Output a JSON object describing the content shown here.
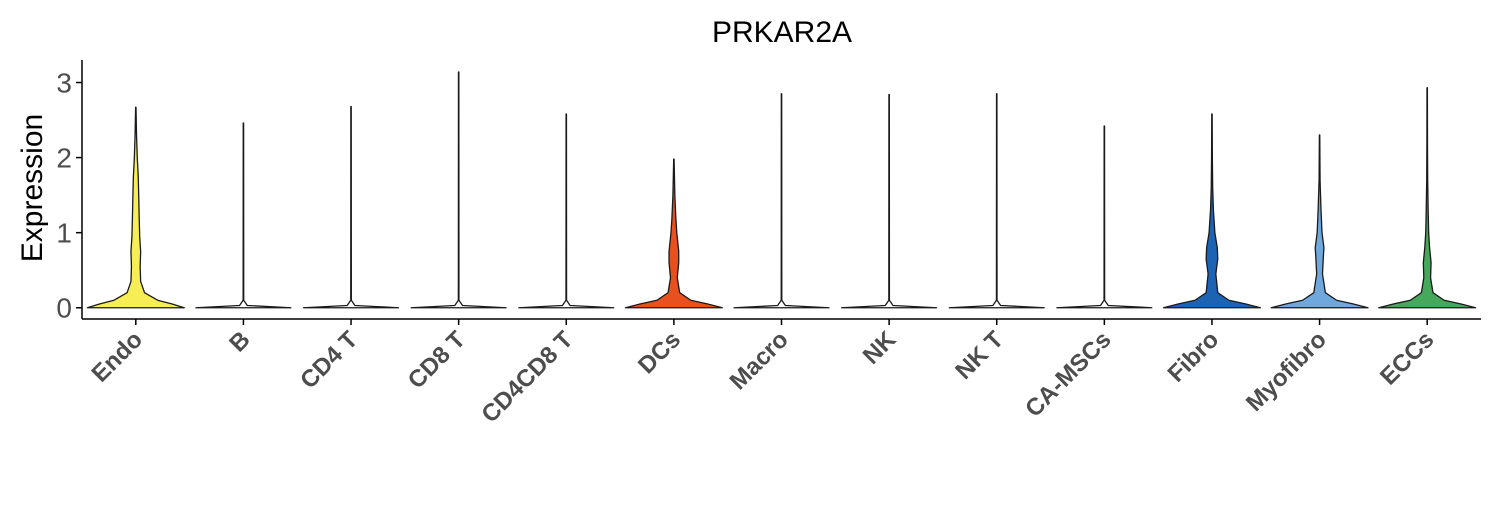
{
  "chart_data": {
    "type": "violin",
    "title": "PRKAR2A",
    "xlabel": "",
    "ylabel": "Expression",
    "ylim": [
      -0.15,
      3.3
    ],
    "yticks": [
      0,
      1,
      2,
      3
    ],
    "grid": false,
    "legend": "none",
    "categories": [
      "Endo",
      "B",
      "CD4 T",
      "CD8 T",
      "CD4CD8 T",
      "DCs",
      "Macro",
      "NK",
      "NK T",
      "CA-MSCs",
      "Fibro",
      "Myofibro",
      "ECCs"
    ],
    "colors": [
      "#f7ee55",
      "#ffffff",
      "#ffffff",
      "#ffffff",
      "#ffffff",
      "#e8511e",
      "#ffffff",
      "#ffffff",
      "#ffffff",
      "#ffffff",
      "#1c64b3",
      "#6fa8dc",
      "#46a85b"
    ],
    "max_values": [
      2.67,
      2.46,
      2.68,
      3.14,
      2.58,
      1.98,
      2.85,
      2.84,
      2.85,
      2.42,
      2.58,
      2.3,
      2.93
    ],
    "shapes": [
      [
        [
          0,
          1.0
        ],
        [
          0.05,
          0.75
        ],
        [
          0.1,
          0.45
        ],
        [
          0.2,
          0.18
        ],
        [
          0.35,
          0.1
        ],
        [
          0.55,
          0.09
        ],
        [
          0.75,
          0.1
        ],
        [
          0.95,
          0.08
        ],
        [
          1.2,
          0.07
        ],
        [
          1.5,
          0.06
        ],
        [
          1.75,
          0.05
        ],
        [
          2.0,
          0.03
        ],
        [
          2.3,
          0.015
        ],
        [
          2.67,
          0.004
        ]
      ],
      [
        [
          0,
          0.98
        ],
        [
          0.03,
          0.08
        ],
        [
          0.1,
          0.006
        ],
        [
          2.46,
          0.004
        ]
      ],
      [
        [
          0,
          0.98
        ],
        [
          0.03,
          0.08
        ],
        [
          0.1,
          0.006
        ],
        [
          2.68,
          0.004
        ]
      ],
      [
        [
          0,
          0.98
        ],
        [
          0.03,
          0.08
        ],
        [
          0.1,
          0.006
        ],
        [
          3.14,
          0.004
        ]
      ],
      [
        [
          0,
          0.98
        ],
        [
          0.03,
          0.08
        ],
        [
          0.1,
          0.006
        ],
        [
          2.58,
          0.004
        ]
      ],
      [
        [
          0,
          1.0
        ],
        [
          0.05,
          0.7
        ],
        [
          0.1,
          0.35
        ],
        [
          0.2,
          0.12
        ],
        [
          0.4,
          0.07
        ],
        [
          0.6,
          0.1
        ],
        [
          0.75,
          0.1
        ],
        [
          1.0,
          0.06
        ],
        [
          1.2,
          0.04
        ],
        [
          1.5,
          0.02
        ],
        [
          1.98,
          0.004
        ]
      ],
      [
        [
          0,
          0.98
        ],
        [
          0.03,
          0.08
        ],
        [
          0.1,
          0.006
        ],
        [
          2.85,
          0.004
        ]
      ],
      [
        [
          0,
          0.98
        ],
        [
          0.03,
          0.08
        ],
        [
          0.1,
          0.006
        ],
        [
          2.84,
          0.004
        ]
      ],
      [
        [
          0,
          0.98
        ],
        [
          0.03,
          0.08
        ],
        [
          0.1,
          0.006
        ],
        [
          2.85,
          0.004
        ]
      ],
      [
        [
          0,
          0.98
        ],
        [
          0.03,
          0.08
        ],
        [
          0.1,
          0.006
        ],
        [
          2.42,
          0.004
        ]
      ],
      [
        [
          0,
          1.0
        ],
        [
          0.05,
          0.7
        ],
        [
          0.1,
          0.35
        ],
        [
          0.2,
          0.12
        ],
        [
          0.45,
          0.08
        ],
        [
          0.65,
          0.12
        ],
        [
          0.8,
          0.11
        ],
        [
          1.0,
          0.06
        ],
        [
          1.3,
          0.03
        ],
        [
          1.6,
          0.015
        ],
        [
          2.0,
          0.008
        ],
        [
          2.58,
          0.004
        ]
      ],
      [
        [
          0,
          1.0
        ],
        [
          0.05,
          0.7
        ],
        [
          0.1,
          0.35
        ],
        [
          0.2,
          0.12
        ],
        [
          0.45,
          0.06
        ],
        [
          0.7,
          0.08
        ],
        [
          0.8,
          0.09
        ],
        [
          1.0,
          0.05
        ],
        [
          1.3,
          0.03
        ],
        [
          1.7,
          0.01
        ],
        [
          2.3,
          0.004
        ]
      ],
      [
        [
          0,
          1.0
        ],
        [
          0.05,
          0.7
        ],
        [
          0.1,
          0.35
        ],
        [
          0.2,
          0.12
        ],
        [
          0.4,
          0.07
        ],
        [
          0.6,
          0.08
        ],
        [
          0.8,
          0.05
        ],
        [
          1.0,
          0.03
        ],
        [
          1.3,
          0.02
        ],
        [
          1.7,
          0.01
        ],
        [
          2.2,
          0.006
        ],
        [
          2.93,
          0.004
        ]
      ]
    ]
  }
}
